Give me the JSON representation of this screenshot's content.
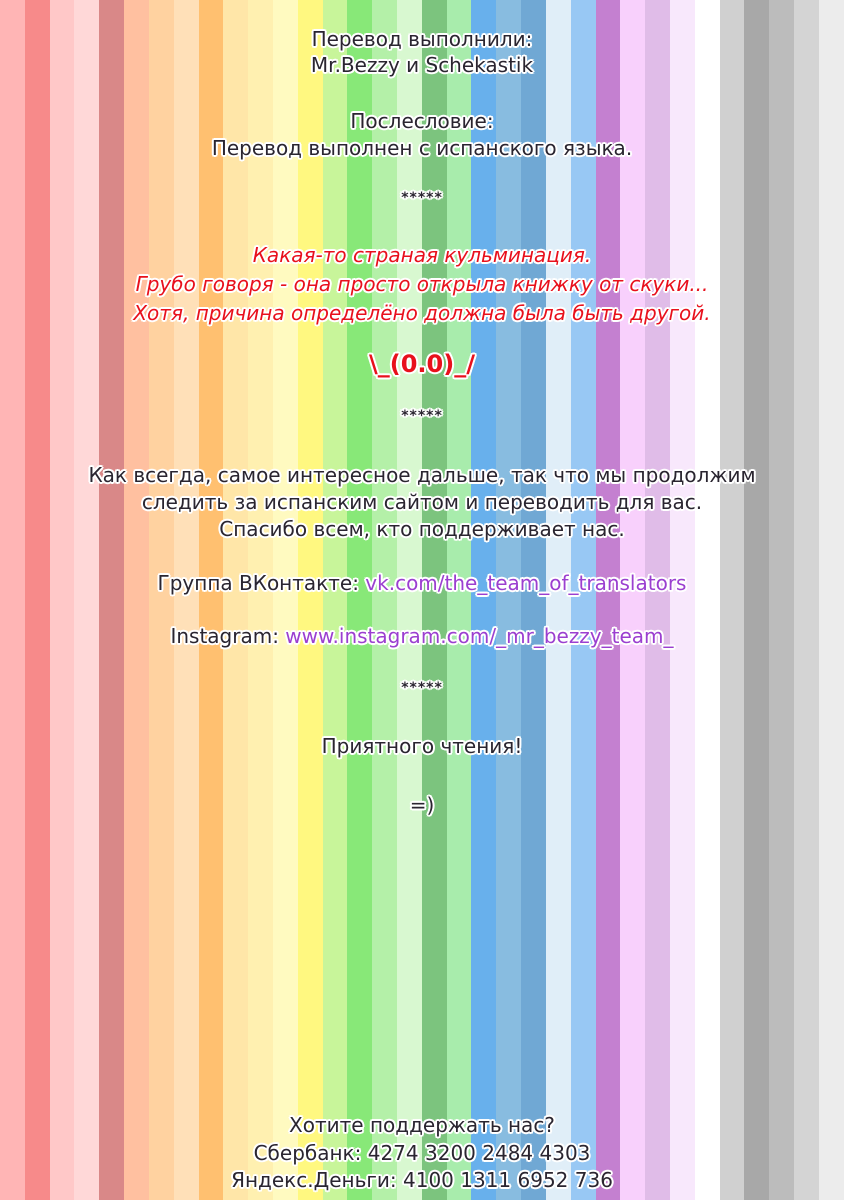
{
  "stripe_colors": [
    "#ffb5b5",
    "#f78a8a",
    "#ffc8c8",
    "#ffd8d8",
    "#d98888",
    "#ffc0a0",
    "#ffd2a0",
    "#ffe0b8",
    "#ffc070",
    "#ffe6a8",
    "#fff0b0",
    "#fffac0",
    "#fff880",
    "#c8f59a",
    "#88e878",
    "#b4f0a8",
    "#d8f8d0",
    "#7cc47e",
    "#a8ecac",
    "#68b0ec",
    "#88bce0",
    "#70a8d4",
    "#e0eef8",
    "#98c8f4",
    "#c480d0",
    "#f8d0fc",
    "#e0bce8",
    "#f8e8fc",
    "#ffffff",
    "#d0d0d0",
    "#a8a8a8",
    "#bcbcbc",
    "#d4d4d4",
    "#ececec"
  ],
  "credits": {
    "heading": "Перевод выполнили:",
    "names": "Mr.Bezzy и Schekastik"
  },
  "afterword": {
    "heading": "Послесловие:",
    "text": "Перевод выполнен с испанского языка."
  },
  "separator": "*****",
  "comment": {
    "line1": "Какая-то страная кульминация.",
    "line2": "Грубо говоря - она просто открыла книжку от скуки...",
    "line3": "Хотя, причина определёно должна была быть другой."
  },
  "emoticon": "\\_(0.0)_/",
  "message": {
    "line1": "Как всегда, самое интересное дальше, так что мы продолжим",
    "line2": "следить за испанским сайтом и переводить для вас.",
    "line3": "Спасибо всем, кто поддерживает нас."
  },
  "links": {
    "vk_label": "Группа ВКонтакте: ",
    "vk_url": "vk.com/the_team_of_translators",
    "insta_label": "Instagram: ",
    "insta_url": "www.instagram.com/_mr_bezzy_team_"
  },
  "closing": {
    "text": "Приятного чтения!",
    "smile": "=)"
  },
  "support": {
    "heading": "Хотите поддержать нас?",
    "sberbank": "Сбербанк: 4274 3200 2484 4303",
    "yandex": "Яндекс.Деньги: 4100 1311 6952 736"
  }
}
